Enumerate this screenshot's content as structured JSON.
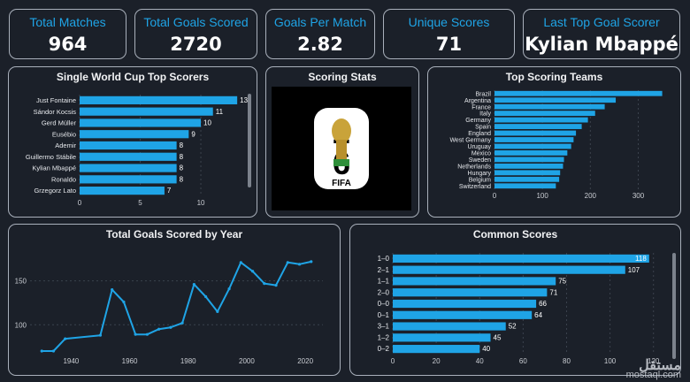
{
  "kpis": [
    {
      "label": "Total Matches",
      "value": "964"
    },
    {
      "label": "Total Goals Scored",
      "value": "2720"
    },
    {
      "label": "Goals Per Match",
      "value": "2.82"
    },
    {
      "label": "Unique Scores",
      "value": "71"
    },
    {
      "label": "Last Top Goal Scorer",
      "value": "Kylian Mbappé"
    }
  ],
  "scoring_stats": {
    "title": "Scoring Stats",
    "logo_text": "FIFA",
    "logo_digits": "26"
  },
  "watermark": {
    "arabic": "مستقل",
    "latin": "mostaql.com"
  },
  "chart_data": [
    {
      "type": "bar",
      "orientation": "horizontal",
      "title": "Single World Cup Top Scorers",
      "categories": [
        "Just Fontaine",
        "Sándor Kocsis",
        "Gerd Müller",
        "Eusébio",
        "Ademir",
        "Guillermo Stábile",
        "Kylian Mbappé",
        "Ronaldo",
        "Grzegorz Lato"
      ],
      "values": [
        13,
        11,
        10,
        9,
        8,
        8,
        8,
        8,
        7
      ],
      "show_data_labels": true,
      "xticks": [
        0,
        5,
        10
      ],
      "xlim": [
        0,
        13.5
      ],
      "color": "#1fa4e6"
    },
    {
      "type": "bar",
      "orientation": "horizontal",
      "title": "Top Scoring Teams",
      "categories": [
        "Brazil",
        "Argentina",
        "France",
        "Italy",
        "Germany",
        "Spain",
        "England",
        "West Germany",
        "Uruguay",
        "Mexico",
        "Sweden",
        "Netherlands",
        "Hungary",
        "Belgium",
        "Switzerland"
      ],
      "values": [
        350,
        253,
        230,
        210,
        195,
        182,
        170,
        165,
        160,
        152,
        145,
        143,
        137,
        135,
        128
      ],
      "xticks": [
        0,
        100,
        200,
        300
      ],
      "xlim": [
        0,
        360
      ],
      "color": "#1fa4e6"
    },
    {
      "type": "line",
      "title": "Total Goals Scored by Year",
      "x": [
        1930,
        1934,
        1938,
        1950,
        1954,
        1958,
        1962,
        1966,
        1970,
        1974,
        1978,
        1982,
        1986,
        1990,
        1994,
        1998,
        2002,
        2006,
        2010,
        2014,
        2018,
        2022
      ],
      "y": [
        70,
        70,
        84,
        88,
        140,
        126,
        89,
        89,
        95,
        97,
        102,
        146,
        132,
        115,
        141,
        171,
        161,
        147,
        145,
        171,
        169,
        172
      ],
      "xticks": [
        1940,
        1960,
        1980,
        2000,
        2020
      ],
      "yticks": [
        100,
        150
      ],
      "xlim": [
        1926,
        2026
      ],
      "ylim": [
        68,
        190
      ],
      "color": "#1fa4e6"
    },
    {
      "type": "bar",
      "orientation": "horizontal",
      "title": "Common Scores",
      "categories": [
        "1–0",
        "2–1",
        "1–1",
        "2–0",
        "0–0",
        "0–1",
        "3–1",
        "1–2",
        "0–2"
      ],
      "values": [
        118,
        107,
        75,
        71,
        66,
        64,
        52,
        45,
        40
      ],
      "show_data_labels": true,
      "xticks": [
        0,
        20,
        40,
        60,
        80,
        100,
        120
      ],
      "xlim": [
        0,
        125
      ],
      "color": "#1fa4e6"
    }
  ]
}
